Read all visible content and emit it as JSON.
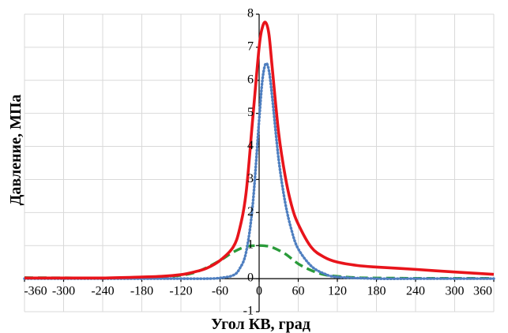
{
  "chart_data": {
    "type": "line",
    "title": "",
    "xlabel": "Угол КВ, град",
    "ylabel": "Давление, МПа",
    "xlim": [
      -360,
      360
    ],
    "ylim": [
      -1,
      8
    ],
    "x_ticks": [
      -360,
      -300,
      -240,
      -180,
      -120,
      -60,
      0,
      60,
      120,
      180,
      240,
      300,
      360
    ],
    "y_ticks": [
      -1,
      0,
      1,
      2,
      3,
      4,
      5,
      6,
      7,
      8
    ],
    "grid": "vertical and horizontal",
    "legend": "none",
    "series": [
      {
        "style": "solid",
        "color": "#e8141b",
        "x": [
          -360,
          -300,
          -240,
          -180,
          -150,
          -120,
          -100,
          -80,
          -60,
          -40,
          -30,
          -20,
          -10,
          0,
          5,
          10,
          15,
          20,
          30,
          40,
          50,
          60,
          80,
          100,
          120,
          150,
          180,
          240,
          300,
          360
        ],
        "y": [
          0.02,
          0.02,
          0.02,
          0.05,
          0.07,
          0.12,
          0.2,
          0.32,
          0.55,
          0.95,
          1.5,
          2.6,
          4.8,
          7.0,
          7.6,
          7.75,
          7.4,
          6.4,
          4.4,
          3.1,
          2.2,
          1.65,
          0.95,
          0.65,
          0.5,
          0.4,
          0.35,
          0.28,
          0.2,
          0.13
        ]
      },
      {
        "style": "dotted",
        "color": "#4f7fc0",
        "x": [
          -360,
          -180,
          -120,
          -80,
          -60,
          -40,
          -30,
          -20,
          -10,
          0,
          5,
          10,
          15,
          20,
          30,
          40,
          50,
          60,
          80,
          100,
          120,
          180,
          240,
          300,
          360
        ],
        "y": [
          0,
          0,
          0,
          0,
          0.02,
          0.1,
          0.3,
          0.8,
          2.2,
          4.8,
          6.0,
          6.5,
          6.3,
          5.5,
          3.6,
          2.3,
          1.45,
          0.9,
          0.38,
          0.15,
          0.05,
          0,
          0,
          0,
          0
        ]
      },
      {
        "style": "dashed",
        "color": "#2a9b3a",
        "x": [
          -360,
          -240,
          -180,
          -120,
          -90,
          -60,
          -40,
          -20,
          0,
          10,
          20,
          40,
          60,
          80,
          100,
          120,
          150,
          180,
          240,
          300,
          360
        ],
        "y": [
          0.03,
          0.02,
          0.03,
          0.1,
          0.25,
          0.55,
          0.8,
          0.97,
          1.0,
          0.99,
          0.95,
          0.75,
          0.45,
          0.25,
          0.12,
          0.07,
          0.03,
          0.02,
          0.01,
          0.01,
          0.01
        ]
      }
    ]
  }
}
